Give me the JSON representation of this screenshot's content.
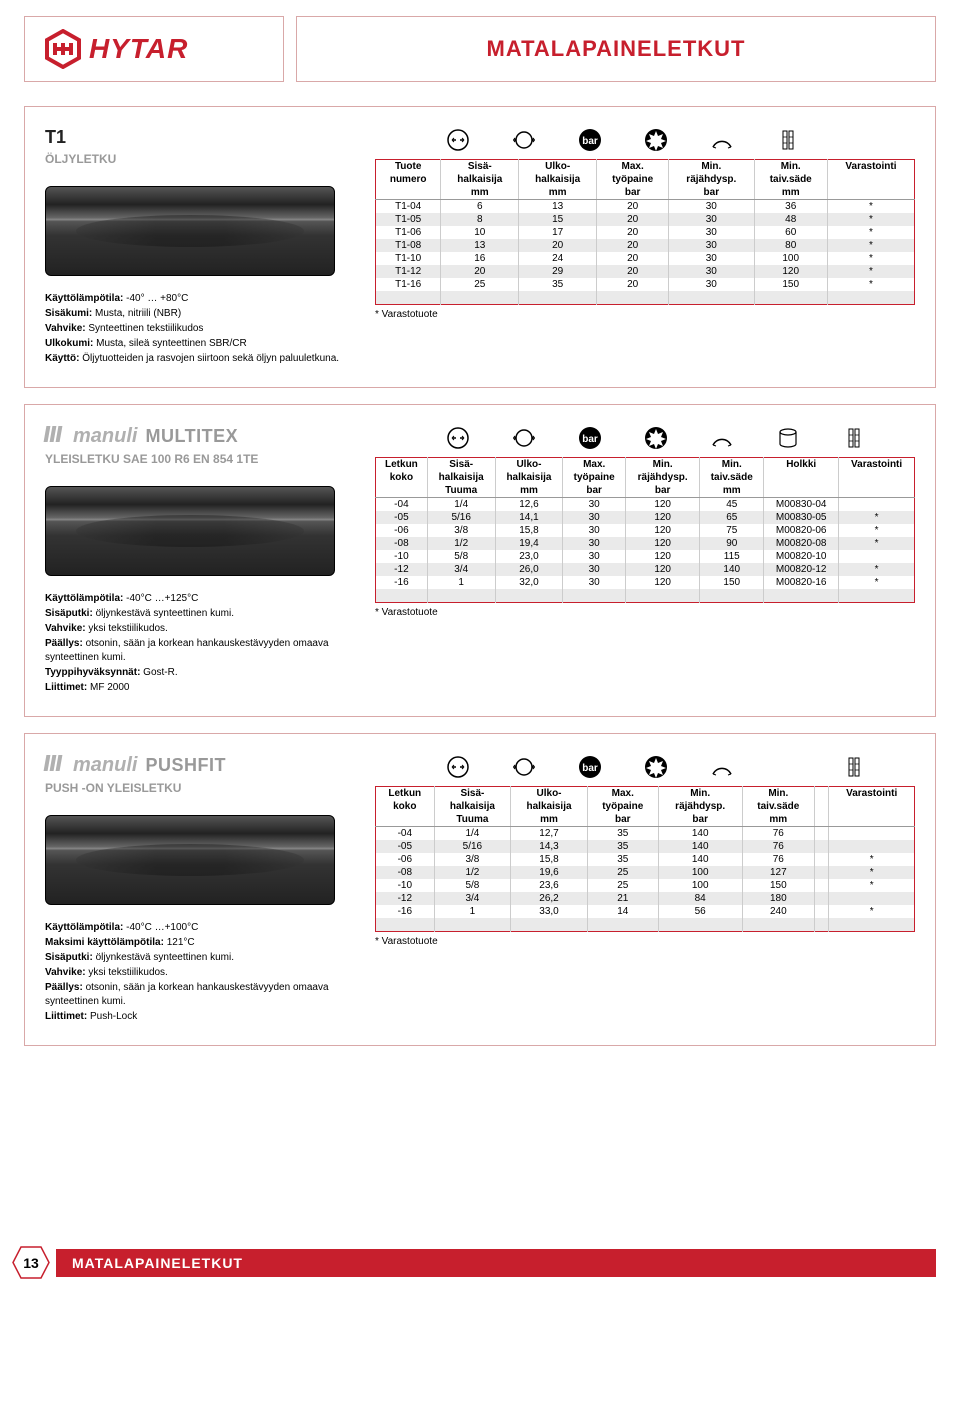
{
  "page": {
    "title": "MATALAPAINELETKUT",
    "footer_label": "MATALAPAINELETKUT",
    "page_number": "13",
    "logo_text": "HYTAR",
    "brand_color": "#c71f2d"
  },
  "sections": [
    {
      "heading": "T1",
      "subheading": "ÖLJYLETKU",
      "brand": null,
      "specs": [
        {
          "label": "Käyttölämpötila:",
          "value": " -40° … +80°C"
        },
        {
          "label": "Sisäkumi:",
          "value": " Musta, nitriili (NBR)"
        },
        {
          "label": "Vahvike:",
          "value": " Synteettinen tekstiilikudos"
        },
        {
          "label": "Ulkokumi:",
          "value": " Musta, sileä synteettinen SBR/CR"
        },
        {
          "label": "Käyttö:",
          "value": " Öljytuotteiden ja rasvojen siirtoon sekä öljyn paluuletkuna."
        }
      ],
      "columns": [
        {
          "l1": "Tuote",
          "l2": "numero",
          "l3": ""
        },
        {
          "l1": "Sisä-",
          "l2": "halkaisija",
          "l3": "mm"
        },
        {
          "l1": "Ulko-",
          "l2": "halkaisija",
          "l3": "mm"
        },
        {
          "l1": "Max.",
          "l2": "työpaine",
          "l3": "bar"
        },
        {
          "l1": "Min.",
          "l2": "räjähdysp.",
          "l3": "bar"
        },
        {
          "l1": "Min.",
          "l2": "taiv.säde",
          "l3": "mm"
        },
        {
          "l1": "Varastointi",
          "l2": "",
          "l3": ""
        }
      ],
      "rows": [
        [
          "T1-04",
          "6",
          "13",
          "20",
          "30",
          "36",
          "*"
        ],
        [
          "T1-05",
          "8",
          "15",
          "20",
          "30",
          "48",
          "*"
        ],
        [
          "T1-06",
          "10",
          "17",
          "20",
          "30",
          "60",
          "*"
        ],
        [
          "T1-08",
          "13",
          "20",
          "20",
          "30",
          "80",
          "*"
        ],
        [
          "T1-10",
          "16",
          "24",
          "20",
          "30",
          "100",
          "*"
        ],
        [
          "T1-12",
          "20",
          "29",
          "20",
          "30",
          "120",
          "*"
        ],
        [
          "T1-16",
          "25",
          "35",
          "20",
          "30",
          "150",
          "*"
        ]
      ],
      "footnote": "* Varastotuote",
      "icons": [
        "inner",
        "outer",
        "bar",
        "burst",
        "bend",
        "stock"
      ]
    },
    {
      "heading": null,
      "brand": "manuli",
      "brand_model": "MULTITEX",
      "subheading": "YLEISLETKU SAE 100 R6 EN 854 1TE",
      "specs": [
        {
          "label": "Käyttölämpötila:",
          "value": " -40°C …+125°C"
        },
        {
          "label": "Sisäputki:",
          "value": " öljynkestävä synteettinen kumi."
        },
        {
          "label": "Vahvike:",
          "value": " yksi tekstiilikudos."
        },
        {
          "label": "Päällys:",
          "value": " otsonin, sään ja korkean hankauskestävyyden omaava synteettinen kumi."
        },
        {
          "label": "Tyyppihyväksynnät:",
          "value": " Gost-R."
        },
        {
          "label": "Liittimet:",
          "value": " MF 2000"
        }
      ],
      "columns": [
        {
          "l1": "Letkun",
          "l2": "koko",
          "l3": ""
        },
        {
          "l1": "Sisä-",
          "l2": "halkaisija",
          "l3": "Tuuma"
        },
        {
          "l1": "Ulko-",
          "l2": "halkaisija",
          "l3": "mm"
        },
        {
          "l1": "Max.",
          "l2": "työpaine",
          "l3": "bar"
        },
        {
          "l1": "Min.",
          "l2": "räjähdysp.",
          "l3": "bar"
        },
        {
          "l1": "Min.",
          "l2": "taiv.säde",
          "l3": "mm"
        },
        {
          "l1": "Holkki",
          "l2": "",
          "l3": ""
        },
        {
          "l1": "Varastointi",
          "l2": "",
          "l3": ""
        }
      ],
      "rows": [
        [
          "-04",
          "1/4",
          "12,6",
          "30",
          "120",
          "45",
          "M00830-04",
          ""
        ],
        [
          "-05",
          "5/16",
          "14,1",
          "30",
          "120",
          "65",
          "M00830-05",
          "*"
        ],
        [
          "-06",
          "3/8",
          "15,8",
          "30",
          "120",
          "75",
          "M00820-06",
          "*"
        ],
        [
          "-08",
          "1/2",
          "19,4",
          "30",
          "120",
          "90",
          "M00820-08",
          "*"
        ],
        [
          "-10",
          "5/8",
          "23,0",
          "30",
          "120",
          "115",
          "M00820-10",
          ""
        ],
        [
          "-12",
          "3/4",
          "26,0",
          "30",
          "120",
          "140",
          "M00820-12",
          "*"
        ],
        [
          "-16",
          "1",
          "32,0",
          "30",
          "120",
          "150",
          "M00820-16",
          "*"
        ]
      ],
      "footnote": "* Varastotuote",
      "icons": [
        "inner",
        "outer",
        "bar",
        "burst",
        "bend",
        "ferrule",
        "stock"
      ]
    },
    {
      "heading": null,
      "brand": "manuli",
      "brand_model": "PUSHFIT",
      "subheading": "PUSH -ON YLEISLETKU",
      "specs": [
        {
          "label": "Käyttölämpötila:",
          "value": " -40°C …+100°C"
        },
        {
          "label": "Maksimi käyttölämpötila:",
          "value": " 121°C"
        },
        {
          "label": "Sisäputki:",
          "value": " öljynkestävä synteettinen kumi."
        },
        {
          "label": "Vahvike:",
          "value": " yksi tekstiilikudos."
        },
        {
          "label": "Päällys:",
          "value": " otsonin, sään ja korkean hankauskestävyyden omaava synteettinen kumi."
        },
        {
          "label": "Liittimet:",
          "value": " Push-Lock"
        }
      ],
      "columns": [
        {
          "l1": "Letkun",
          "l2": "koko",
          "l3": ""
        },
        {
          "l1": "Sisä-",
          "l2": "halkaisija",
          "l3": "Tuuma"
        },
        {
          "l1": "Ulko-",
          "l2": "halkaisija",
          "l3": "mm"
        },
        {
          "l1": "Max.",
          "l2": "työpaine",
          "l3": "bar"
        },
        {
          "l1": "Min.",
          "l2": "räjähdysp.",
          "l3": "bar"
        },
        {
          "l1": "Min.",
          "l2": "taiv.säde",
          "l3": "mm"
        },
        {
          "l1": "",
          "l2": "",
          "l3": ""
        },
        {
          "l1": "Varastointi",
          "l2": "",
          "l3": ""
        }
      ],
      "rows": [
        [
          "-04",
          "1/4",
          "12,7",
          "35",
          "140",
          "76",
          "",
          ""
        ],
        [
          "-05",
          "5/16",
          "14,3",
          "35",
          "140",
          "76",
          "",
          ""
        ],
        [
          "-06",
          "3/8",
          "15,8",
          "35",
          "140",
          "76",
          "",
          "*"
        ],
        [
          "-08",
          "1/2",
          "19,6",
          "25",
          "100",
          "127",
          "",
          "*"
        ],
        [
          "-10",
          "5/8",
          "23,6",
          "25",
          "100",
          "150",
          "",
          "*"
        ],
        [
          "-12",
          "3/4",
          "26,2",
          "21",
          "84",
          "180",
          "",
          ""
        ],
        [
          "-16",
          "1",
          "33,0",
          "14",
          "56",
          "240",
          "",
          "*"
        ]
      ],
      "footnote": "* Varastotuote",
      "icons": [
        "inner",
        "outer",
        "bar",
        "burst",
        "bend",
        "",
        "stock"
      ]
    }
  ]
}
